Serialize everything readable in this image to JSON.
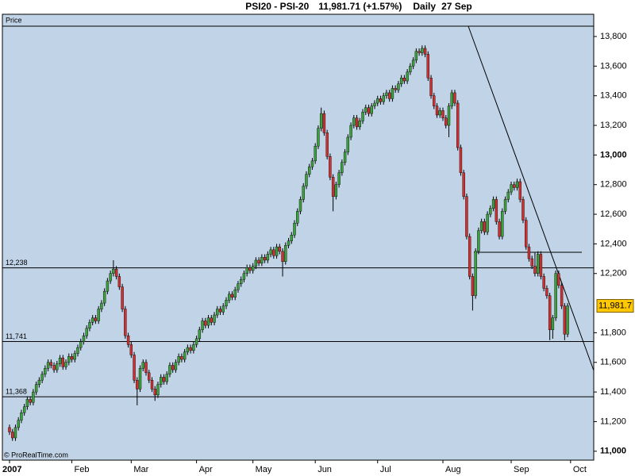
{
  "chart_data": {
    "type": "candlestick",
    "title": "PSI20 - PSI-20",
    "last_price_label": "11,981.71 (+1.57%)",
    "period": "Daily",
    "date": "27 Sep",
    "y_label": "Price",
    "watermark": "© ProRealTime.com",
    "current_price_label": "11,981.7",
    "colors": {
      "up": "#3ca03c",
      "down": "#d03030",
      "wick": "#000000",
      "background": "#c1d3e6"
    },
    "ylim": [
      10940,
      13950
    ],
    "yticks": [
      {
        "value": 11000,
        "label": "11,000"
      },
      {
        "value": 11200,
        "label": "11,200"
      },
      {
        "value": 11400,
        "label": "11,400"
      },
      {
        "value": 11600,
        "label": "11,600"
      },
      {
        "value": 11800,
        "label": "11,800"
      },
      {
        "value": 12200,
        "label": "12,200"
      },
      {
        "value": 12400,
        "label": "12,400"
      },
      {
        "value": 12600,
        "label": "12,600"
      },
      {
        "value": 12800,
        "label": "12,800"
      },
      {
        "value": 13000,
        "label": "13,000"
      },
      {
        "value": 13200,
        "label": "13,200"
      },
      {
        "value": 13400,
        "label": "13,400"
      },
      {
        "value": 13600,
        "label": "13,600"
      },
      {
        "value": 13800,
        "label": "13,800"
      }
    ],
    "xlim": [
      -2.4,
      196.8
    ],
    "xticks": [
      {
        "value": 0,
        "label": "2007"
      },
      {
        "value": 21,
        "label": "Feb"
      },
      {
        "value": 41,
        "label": "Mar"
      },
      {
        "value": 63,
        "label": "Apr"
      },
      {
        "value": 82,
        "label": "May"
      },
      {
        "value": 103,
        "label": "Jun"
      },
      {
        "value": 124,
        "label": "Jul"
      },
      {
        "value": 146,
        "label": "Aug"
      },
      {
        "value": 169,
        "label": "Sep"
      },
      {
        "value": 189,
        "label": "Oct"
      }
    ],
    "hlines": [
      {
        "value": 12238,
        "label": "12,238"
      },
      {
        "value": 11741,
        "label": "11,741"
      },
      {
        "value": 11368,
        "label": "11,368"
      }
    ],
    "open": [
      11160,
      11130,
      11090,
      11160,
      11210,
      11260,
      11300,
      11350,
      11330,
      11400,
      11450,
      11480,
      11520,
      11560,
      11600,
      11580,
      11550,
      11590,
      11630,
      11570,
      11600,
      11640,
      11620,
      11660,
      11700,
      11740,
      11780,
      11830,
      11870,
      11900,
      11880,
      11960,
      12000,
      12080,
      12150,
      12200,
      12230,
      12180,
      12110,
      11960,
      11780,
      11720,
      11650,
      11480,
      11420,
      11560,
      11600,
      11530,
      11480,
      11420,
      11380,
      11450,
      11500,
      11470,
      11520,
      11580,
      11550,
      11600,
      11640,
      11620,
      11670,
      11700,
      11680,
      11720,
      11760,
      11820,
      11880,
      11850,
      11900,
      11870,
      11920,
      11960,
      11940,
      11980,
      12020,
      12060,
      12040,
      12090,
      12130,
      12160,
      12200,
      12240,
      12220,
      12250,
      12290,
      12270,
      12310,
      12290,
      12330,
      12360,
      12320,
      12380,
      12350,
      12280,
      12390,
      12420,
      12460,
      12540,
      12620,
      12700,
      12790,
      12870,
      12920,
      12960,
      13060,
      13180,
      13280,
      13150,
      12990,
      12850,
      12720,
      12800,
      12880,
      12950,
      13020,
      13120,
      13200,
      13250,
      13190,
      13230,
      13290,
      13320,
      13280,
      13330,
      13350,
      13380,
      13360,
      13400,
      13420,
      13380,
      13450,
      13440,
      13480,
      13520,
      13500,
      13560,
      13600,
      13640,
      13700,
      13690,
      13720,
      13680,
      13520,
      13400,
      13330,
      13270,
      13300,
      13250,
      13200,
      13330,
      13420,
      13350,
      13050,
      12880,
      12720,
      12450,
      12180,
      12050,
      12350,
      12490,
      12550,
      12480,
      12600,
      12640,
      12700,
      12550,
      12450,
      12620,
      12700,
      12750,
      12800,
      12780,
      12820,
      12700,
      12560,
      12380,
      12300,
      12250,
      12200,
      12330,
      12180,
      12100,
      12050,
      11820,
      11900,
      12200,
      12120,
      11980,
      11790
    ],
    "high": [
      11180,
      11150,
      11180,
      11230,
      11280,
      11320,
      11370,
      11370,
      11420,
      11470,
      11500,
      11540,
      11580,
      11620,
      11620,
      11600,
      11610,
      11650,
      11650,
      11620,
      11660,
      11660,
      11680,
      11720,
      11760,
      11800,
      11850,
      11890,
      11920,
      11920,
      11980,
      12020,
      12100,
      12170,
      12220,
      12290,
      12250,
      12200,
      12130,
      11980,
      11800,
      11740,
      11670,
      11500,
      11580,
      11620,
      11620,
      11550,
      11500,
      11440,
      11470,
      11520,
      11520,
      11540,
      11600,
      11600,
      11620,
      11660,
      11660,
      11690,
      11720,
      11720,
      11740,
      11780,
      11840,
      11900,
      11900,
      11920,
      11920,
      11940,
      11980,
      11980,
      12000,
      12040,
      12080,
      12080,
      12110,
      12150,
      12180,
      12220,
      12260,
      12260,
      12270,
      12310,
      12310,
      12330,
      12330,
      12350,
      12380,
      12380,
      12400,
      12400,
      12370,
      12410,
      12440,
      12480,
      12560,
      12640,
      12720,
      12810,
      12890,
      12940,
      12980,
      13080,
      13200,
      13320,
      13300,
      13170,
      13010,
      12870,
      12820,
      12900,
      12970,
      13040,
      13140,
      13220,
      13270,
      13270,
      13250,
      13310,
      13340,
      13340,
      13350,
      13370,
      13400,
      13400,
      13420,
      13440,
      13440,
      13470,
      13470,
      13500,
      13540,
      13540,
      13580,
      13620,
      13660,
      13720,
      13720,
      13740,
      13740,
      13700,
      13540,
      13420,
      13350,
      13320,
      13320,
      13270,
      13350,
      13440,
      13440,
      13370,
      13070,
      12900,
      12740,
      12470,
      12200,
      12370,
      12510,
      12570,
      12570,
      12620,
      12660,
      12720,
      12720,
      12570,
      12640,
      12720,
      12770,
      12820,
      12820,
      12840,
      12840,
      12720,
      12580,
      12400,
      12320,
      12340,
      12350,
      12350,
      12200,
      12120,
      12070,
      11920,
      12220,
      12220,
      12140,
      12000,
      12000
    ],
    "low": [
      11110,
      11070,
      11070,
      11140,
      11190,
      11240,
      11280,
      11310,
      11310,
      11380,
      11430,
      11460,
      11500,
      11540,
      11560,
      11530,
      11530,
      11570,
      11550,
      11550,
      11580,
      11600,
      11600,
      11640,
      11680,
      11720,
      11760,
      11810,
      11850,
      11860,
      11860,
      11940,
      11980,
      12060,
      12130,
      12180,
      12160,
      12090,
      11940,
      11760,
      11700,
      11630,
      11460,
      11310,
      11400,
      11540,
      11510,
      11460,
      11400,
      11340,
      11360,
      11430,
      11450,
      11450,
      11500,
      11530,
      11530,
      11580,
      11600,
      11600,
      11650,
      11660,
      11660,
      11700,
      11740,
      11800,
      11830,
      11830,
      11850,
      11850,
      11900,
      11920,
      11920,
      11960,
      12000,
      12020,
      12020,
      12070,
      12110,
      12140,
      12180,
      12200,
      12200,
      12230,
      12250,
      12250,
      12270,
      12270,
      12310,
      12300,
      12300,
      12330,
      12180,
      12260,
      12370,
      12400,
      12440,
      12520,
      12600,
      12680,
      12770,
      12850,
      12900,
      12940,
      13040,
      13160,
      13130,
      12970,
      12830,
      12620,
      12700,
      12780,
      12860,
      12930,
      13000,
      13100,
      13180,
      13170,
      13170,
      13210,
      13270,
      13260,
      13260,
      13310,
      13330,
      13340,
      13340,
      13380,
      13360,
      13360,
      13420,
      13420,
      13460,
      13480,
      13480,
      13540,
      13580,
      13620,
      13670,
      13670,
      13660,
      13500,
      13380,
      13310,
      13250,
      13250,
      13230,
      13180,
      13120,
      13310,
      13330,
      13030,
      12860,
      12700,
      12430,
      12160,
      11950,
      12030,
      12330,
      12470,
      12460,
      12460,
      12580,
      12620,
      12530,
      12430,
      12430,
      12600,
      12680,
      12730,
      12760,
      12760,
      12680,
      12540,
      12360,
      12280,
      12230,
      12180,
      12180,
      12160,
      12080,
      12030,
      11750,
      11760,
      11880,
      12100,
      11960,
      11750,
      11770
    ],
    "close": [
      11130,
      11090,
      11160,
      11210,
      11260,
      11300,
      11350,
      11330,
      11400,
      11450,
      11480,
      11520,
      11560,
      11600,
      11580,
      11550,
      11590,
      11630,
      11570,
      11600,
      11640,
      11620,
      11660,
      11700,
      11740,
      11780,
      11830,
      11870,
      11900,
      11880,
      11960,
      12000,
      12080,
      12150,
      12200,
      12230,
      12180,
      12110,
      11960,
      11780,
      11720,
      11650,
      11480,
      11420,
      11560,
      11600,
      11530,
      11480,
      11420,
      11380,
      11450,
      11500,
      11470,
      11520,
      11580,
      11550,
      11600,
      11640,
      11620,
      11670,
      11700,
      11680,
      11720,
      11760,
      11820,
      11880,
      11850,
      11900,
      11870,
      11920,
      11960,
      11940,
      11980,
      12020,
      12060,
      12040,
      12090,
      12130,
      12160,
      12200,
      12240,
      12220,
      12250,
      12290,
      12270,
      12310,
      12290,
      12330,
      12360,
      12320,
      12380,
      12350,
      12280,
      12390,
      12420,
      12460,
      12540,
      12620,
      12700,
      12790,
      12870,
      12920,
      12960,
      13060,
      13180,
      13280,
      13150,
      12990,
      12850,
      12720,
      12800,
      12880,
      12950,
      13020,
      13120,
      13200,
      13250,
      13190,
      13230,
      13290,
      13320,
      13280,
      13330,
      13350,
      13380,
      13360,
      13400,
      13420,
      13380,
      13450,
      13440,
      13480,
      13520,
      13500,
      13560,
      13600,
      13640,
      13700,
      13690,
      13720,
      13680,
      13520,
      13400,
      13330,
      13270,
      13300,
      13250,
      13200,
      13330,
      13420,
      13350,
      13050,
      12880,
      12720,
      12450,
      12180,
      12050,
      12350,
      12490,
      12550,
      12480,
      12600,
      12640,
      12700,
      12550,
      12450,
      12620,
      12700,
      12750,
      12800,
      12780,
      12820,
      12700,
      12560,
      12380,
      12300,
      12250,
      12200,
      12330,
      12180,
      12100,
      12050,
      11820,
      11900,
      12200,
      12120,
      11980,
      11790,
      11981.71
    ]
  }
}
